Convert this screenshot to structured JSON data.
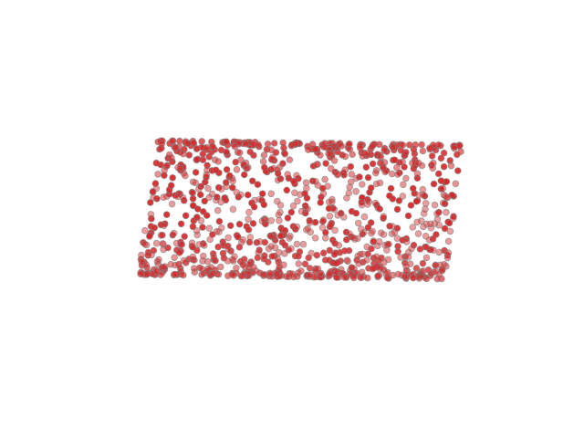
{
  "chart_data": {
    "type": "scatter",
    "projection": "3d",
    "shape": "cylinder",
    "point_count": 1000,
    "x_range": [
      -1,
      1
    ],
    "y_range": [
      -1,
      1
    ],
    "z_range": [
      0,
      3
    ],
    "axes_visible": false,
    "grid": false,
    "legend": "none",
    "marker_color": "#d62728",
    "marker_edge_color": "#808080",
    "title": "",
    "xlabel": "",
    "ylabel": "",
    "zlabel": ""
  }
}
